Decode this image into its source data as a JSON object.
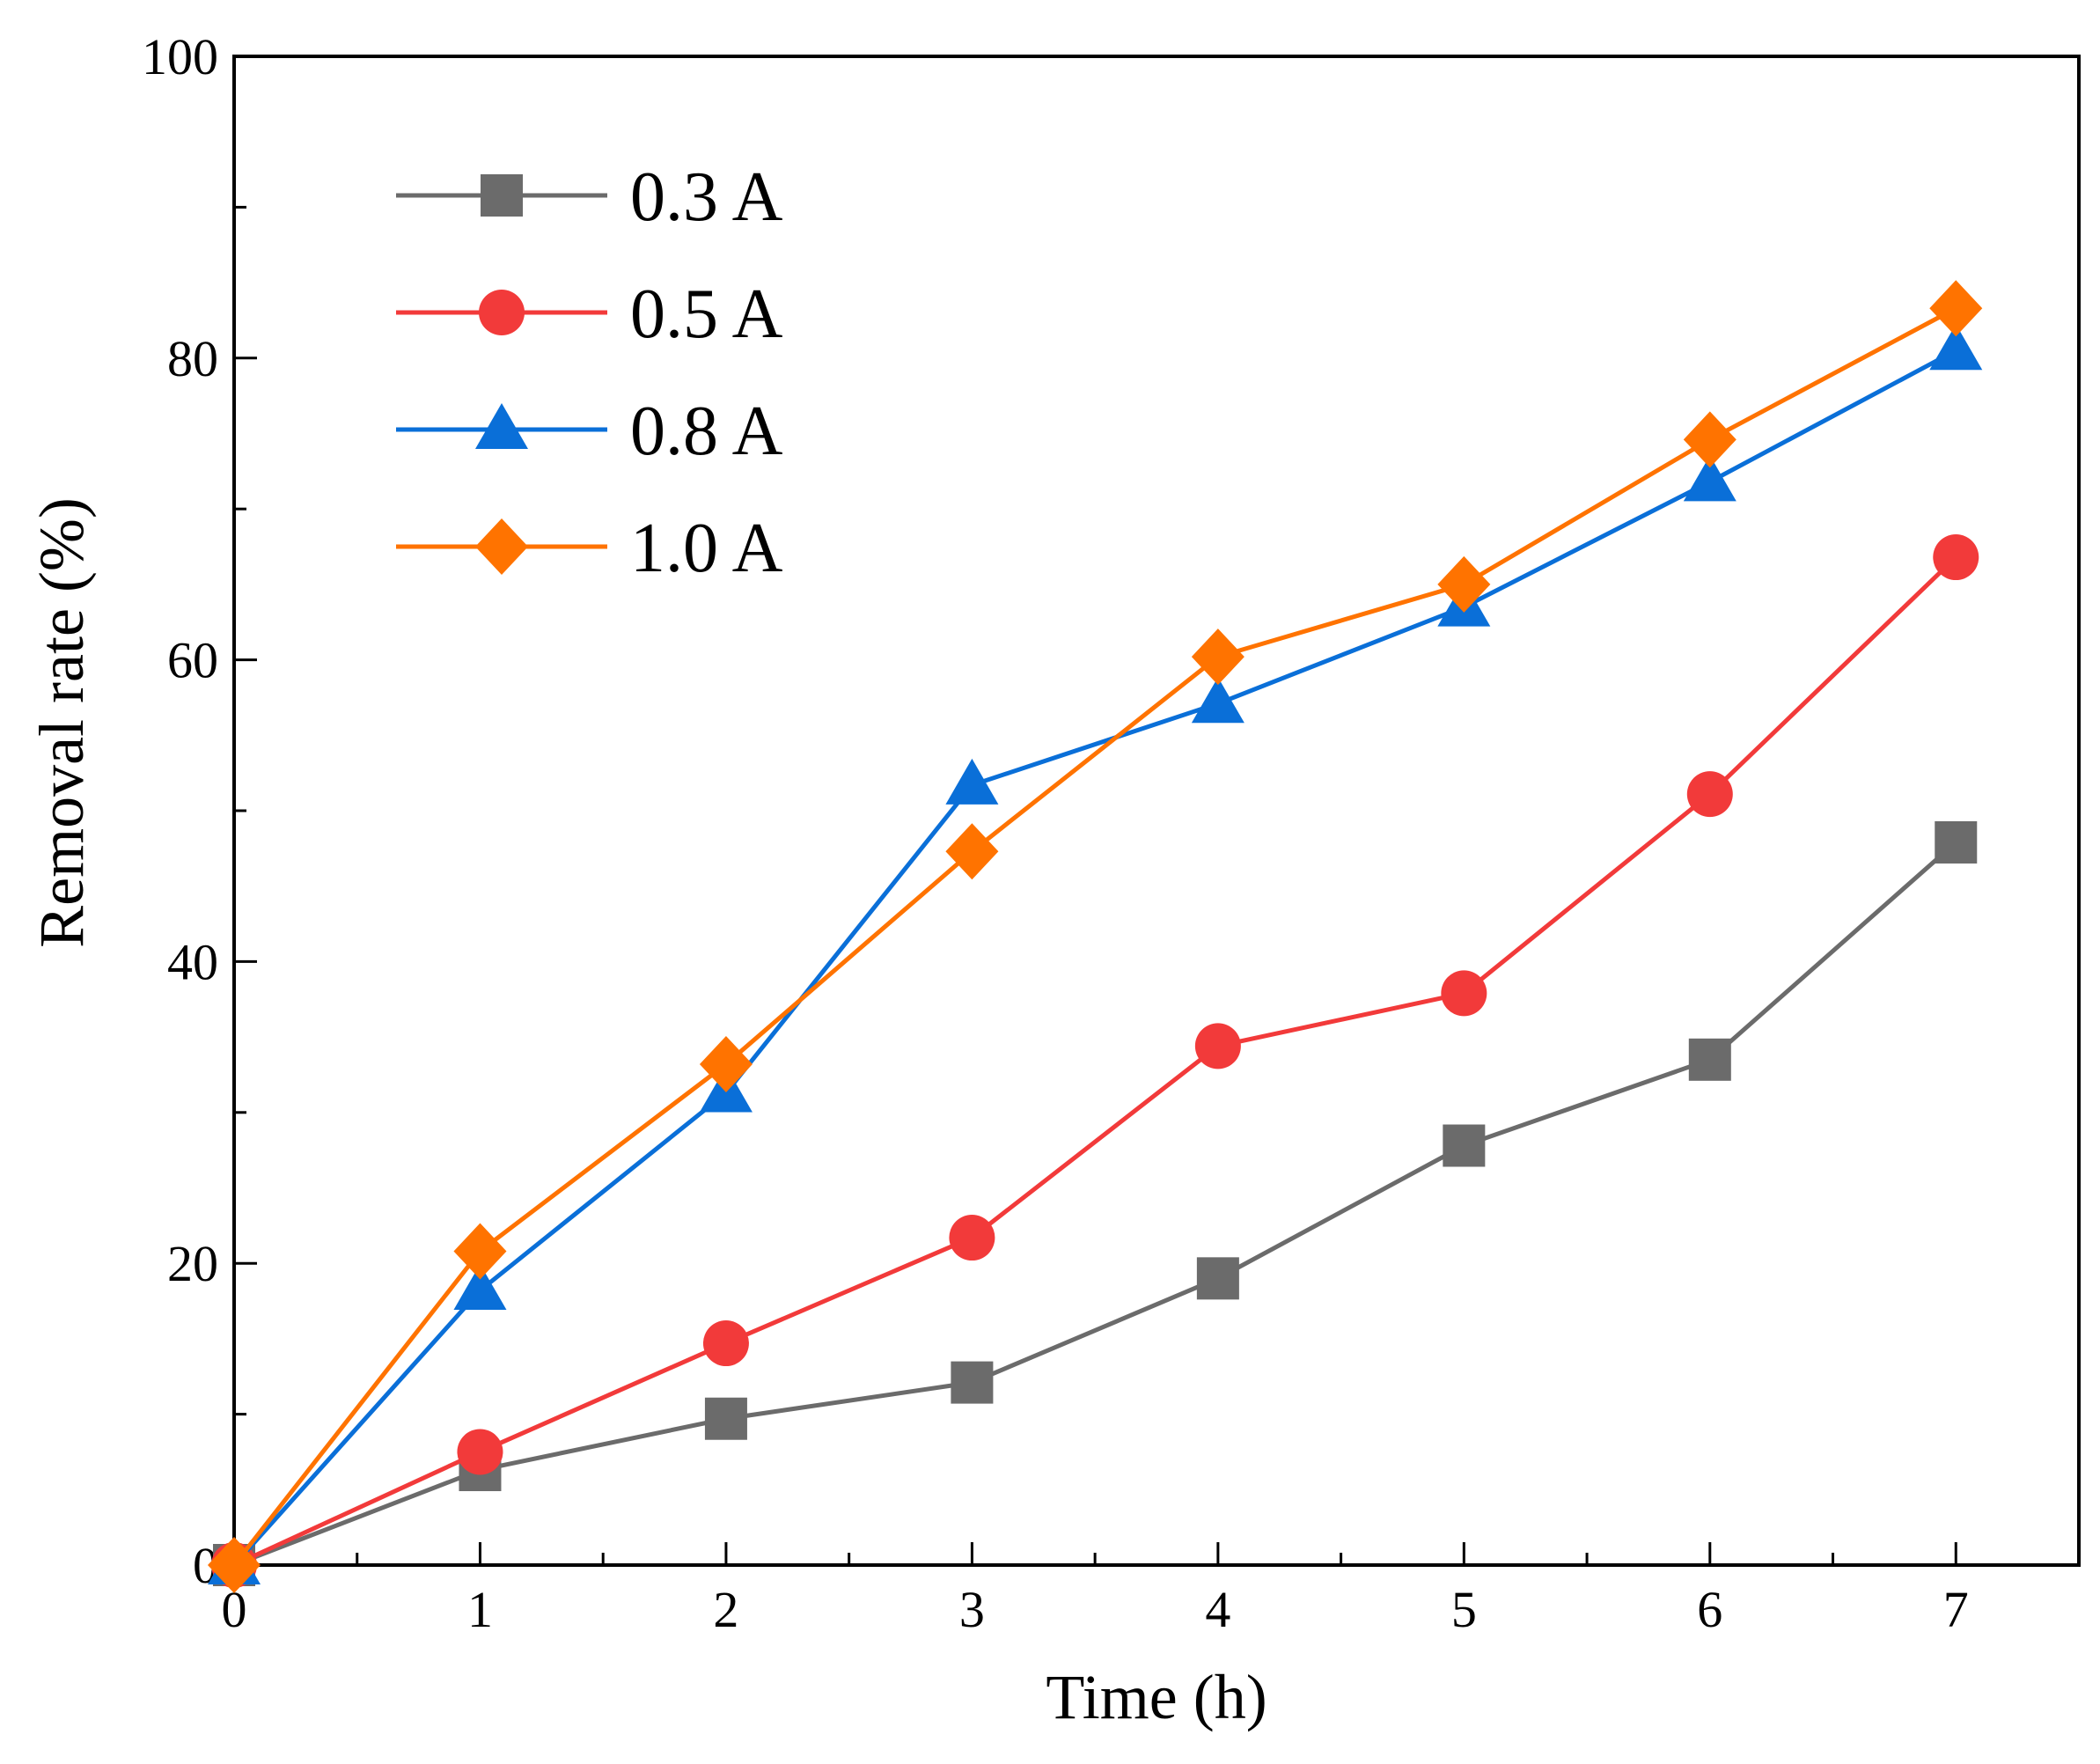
{
  "chart_data": {
    "type": "line",
    "title": "",
    "xlabel": "Time (h)",
    "ylabel": "Removal rate (%)",
    "xlim": [
      0,
      7.5
    ],
    "ylim": [
      0,
      100
    ],
    "x": [
      0,
      1,
      2,
      3,
      4,
      5,
      6,
      7
    ],
    "xticks": [
      "0",
      "1",
      "2",
      "3",
      "4",
      "5",
      "6",
      "7"
    ],
    "yticks": [
      "0",
      "20",
      "40",
      "60",
      "80",
      "100"
    ],
    "grid": false,
    "legend_position": "top-left",
    "series": [
      {
        "name": "0.3 A",
        "color": "#6b6b6b",
        "marker": "square",
        "values": [
          0,
          6.3,
          9.7,
          12.1,
          19.0,
          27.8,
          33.5,
          47.9
        ]
      },
      {
        "name": "0.5 A",
        "color": "#f23a3a",
        "marker": "circle",
        "values": [
          0,
          7.5,
          14.7,
          21.7,
          34.4,
          37.9,
          51.1,
          66.8
        ]
      },
      {
        "name": "0.8 A",
        "color": "#0a6fd8",
        "marker": "triangle",
        "values": [
          0,
          18.2,
          31.3,
          51.7,
          57.1,
          63.5,
          71.8,
          80.5
        ]
      },
      {
        "name": "1.0 A",
        "color": "#ff7300",
        "marker": "diamond",
        "values": [
          0,
          20.8,
          33.2,
          47.3,
          60.2,
          65.0,
          74.6,
          83.3
        ]
      }
    ]
  }
}
